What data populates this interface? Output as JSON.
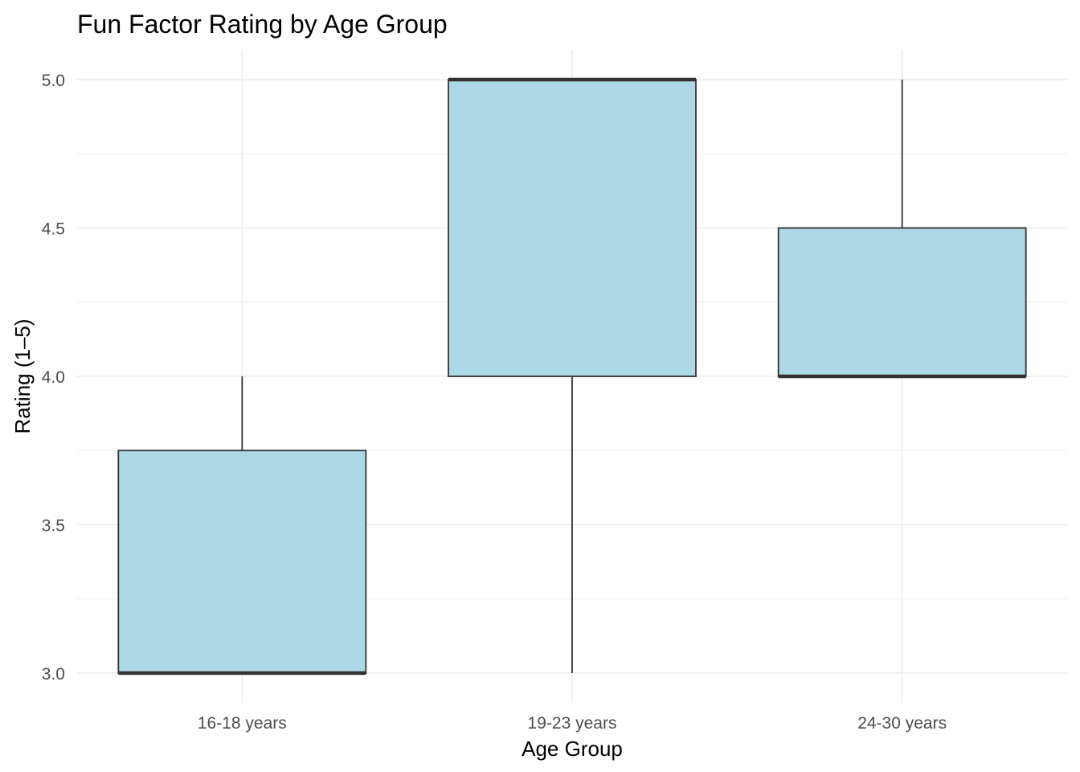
{
  "chart_data": {
    "type": "boxplot",
    "title": "Fun Factor Rating by Age Group",
    "xlabel": "Age Group",
    "ylabel": "Rating (1–5)",
    "categories": [
      "16-18 years",
      "19-23 years",
      "24-30 years"
    ],
    "boxes": [
      {
        "category": "16-18 years",
        "min": 3.0,
        "q1": 3.0,
        "median": 3.0,
        "q3": 3.75,
        "max": 4.0
      },
      {
        "category": "19-23 years",
        "min": 3.0,
        "q1": 4.0,
        "median": 5.0,
        "q3": 5.0,
        "max": 5.0
      },
      {
        "category": "24-30 years",
        "min": 4.0,
        "q1": 4.0,
        "median": 4.0,
        "q3": 4.5,
        "max": 5.0
      }
    ],
    "ylim": [
      2.9,
      5.1
    ],
    "yticks": [
      "3.0",
      "3.5",
      "4.0",
      "4.5",
      "5.0"
    ],
    "grid": true,
    "legend": "none",
    "colors": {
      "box_fill": "#add8e6",
      "box_outline": "#333333",
      "grid_major": "#ebebeb",
      "grid_minor": "#f2f2f2",
      "tick_text": "#4d4d4d"
    }
  }
}
